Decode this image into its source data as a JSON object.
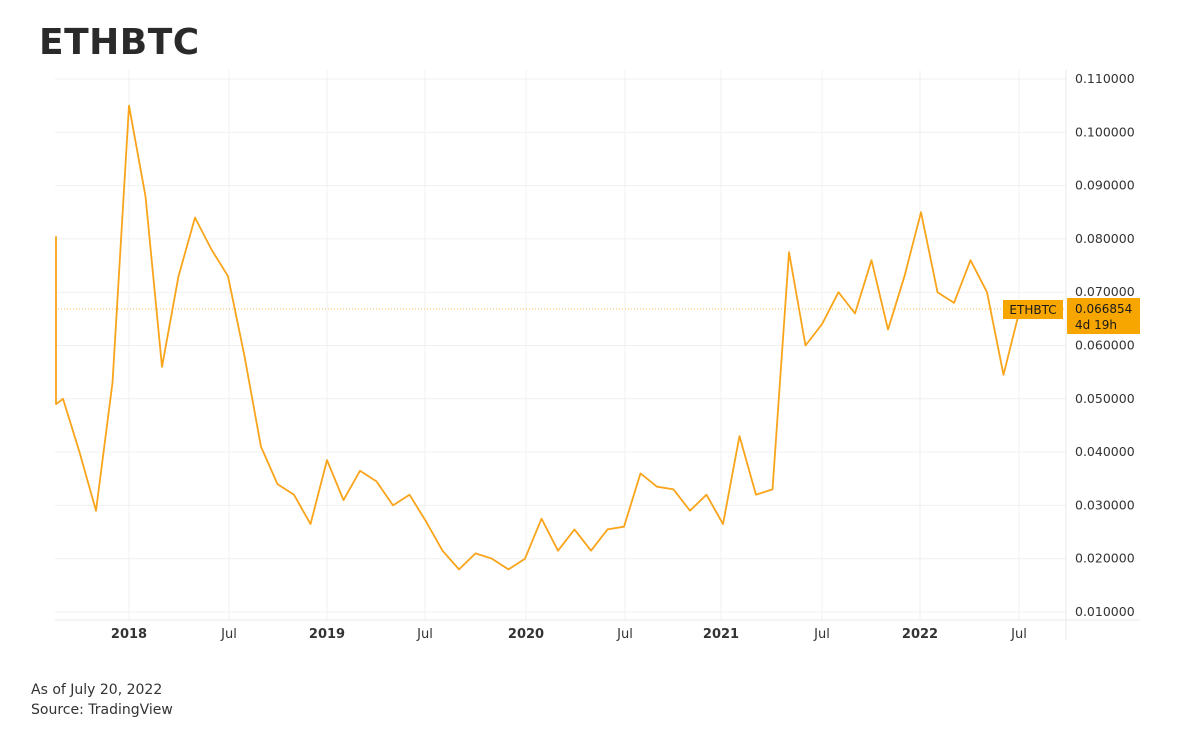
{
  "header": {
    "title": "ETHBTC"
  },
  "footer": {
    "as_of": "As of July 20, 2022",
    "source": "Source: TradingView"
  },
  "price_label": {
    "symbol": "ETHBTC",
    "value": "0.066854",
    "countdown": "4d 19h",
    "color": "#f7a600"
  },
  "colors": {
    "line": "#f9a41a",
    "grid": "#f0f0f0",
    "text": "#333333"
  },
  "chart_data": {
    "type": "line",
    "title": "ETHBTC",
    "xlabel": "",
    "ylabel": "",
    "ylim": [
      0.008,
      0.112
    ],
    "grid": true,
    "legend": "none",
    "y_ticks": [
      "0.110000",
      "0.100000",
      "0.090000",
      "0.080000",
      "0.070000",
      "0.060000",
      "0.050000",
      "0.040000",
      "0.030000",
      "0.020000",
      "0.010000"
    ],
    "x_ticks": [
      {
        "label": "2018",
        "bold": true
      },
      {
        "label": "Jul",
        "bold": false
      },
      {
        "label": "2019",
        "bold": true
      },
      {
        "label": "Jul",
        "bold": false
      },
      {
        "label": "2020",
        "bold": true
      },
      {
        "label": "Jul",
        "bold": false
      },
      {
        "label": "2021",
        "bold": true
      },
      {
        "label": "Jul",
        "bold": false
      },
      {
        "label": "2022",
        "bold": true
      },
      {
        "label": "Jul",
        "bold": false
      }
    ],
    "last_value": 0.066854,
    "series": [
      {
        "name": "ETHBTC",
        "x": [
          "2017-05",
          "2017-06",
          "2017-07",
          "2017-08",
          "2017-09",
          "2017-10",
          "2017-11",
          "2017-12",
          "2018-01",
          "2018-02",
          "2018-03",
          "2018-04",
          "2018-05",
          "2018-06",
          "2018-07",
          "2018-08",
          "2018-09",
          "2018-10",
          "2018-11",
          "2018-12",
          "2019-01",
          "2019-02",
          "2019-03",
          "2019-04",
          "2019-05",
          "2019-06",
          "2019-07",
          "2019-08",
          "2019-09",
          "2019-10",
          "2019-11",
          "2019-12",
          "2020-01",
          "2020-02",
          "2020-03",
          "2020-04",
          "2020-05",
          "2020-06",
          "2020-07",
          "2020-08",
          "2020-09",
          "2020-10",
          "2020-11",
          "2020-12",
          "2021-01",
          "2021-02",
          "2021-03",
          "2021-04",
          "2021-05",
          "2021-06",
          "2021-07",
          "2021-08",
          "2021-09",
          "2021-10",
          "2021-11",
          "2021-12",
          "2022-01",
          "2022-02",
          "2022-03",
          "2022-04",
          "2022-05",
          "2022-06",
          "2022-07"
        ],
        "values": [
          0.0805,
          0.07,
          0.0775,
          0.049,
          0.05,
          0.04,
          0.029,
          0.053,
          0.105,
          0.088,
          0.056,
          0.073,
          0.084,
          0.078,
          0.073,
          0.058,
          0.041,
          0.034,
          0.032,
          0.0265,
          0.0385,
          0.031,
          0.0365,
          0.0345,
          0.03,
          0.032,
          0.027,
          0.0215,
          0.018,
          0.021,
          0.02,
          0.018,
          0.02,
          0.0275,
          0.0215,
          0.0255,
          0.0215,
          0.0255,
          0.026,
          0.036,
          0.0335,
          0.033,
          0.029,
          0.032,
          0.0265,
          0.043,
          0.032,
          0.033,
          0.0775,
          0.06,
          0.064,
          0.07,
          0.066,
          0.076,
          0.063,
          0.073,
          0.085,
          0.07,
          0.068,
          0.076,
          0.07,
          0.0545,
          0.0669
        ]
      }
    ]
  }
}
